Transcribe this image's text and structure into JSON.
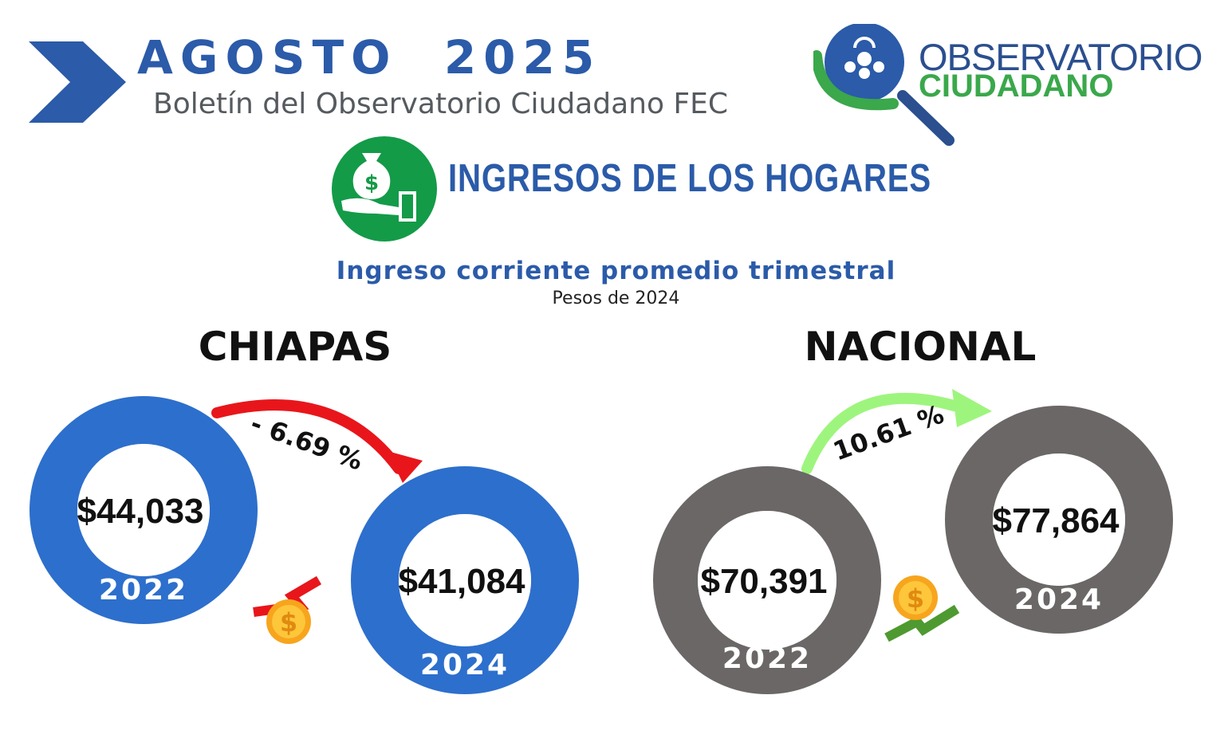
{
  "header": {
    "title": "AGOSTO  2025",
    "subtitle": "Boletín del Observatorio Ciudadano FEC"
  },
  "logo": {
    "line1": "OBSERVATORIO",
    "line2": "CIUDADANO",
    "icon": "magnifier-people-icon"
  },
  "section": {
    "title": "INGRESOS DE LOS HOGARES",
    "icon": "money-bag-hand-icon"
  },
  "colors": {
    "brand_blue": "#2b5ba9",
    "donut_blue": "#2d6fcc",
    "donut_gray": "#6a6766",
    "decrease_red": "#e8161b",
    "increase_green": "#9ef57d",
    "logo_green": "#3aa84b"
  },
  "chart_data": {
    "type": "donut-comparison",
    "title": "Ingreso corriente promedio trimestral",
    "subtitle": "Pesos de 2024",
    "groups": [
      {
        "name": "CHIAPAS",
        "values": [
          {
            "year": "2022",
            "label": "$44,033",
            "value": 44033
          },
          {
            "year": "2024",
            "label": "$41,084",
            "value": 41084
          }
        ],
        "change_label": "- 6.69 %",
        "change": -6.69,
        "trend": "down"
      },
      {
        "name": "NACIONAL",
        "values": [
          {
            "year": "2022",
            "label": "$70,391",
            "value": 70391
          },
          {
            "year": "2024",
            "label": "$77,864",
            "value": 77864
          }
        ],
        "change_label": "10.61 %",
        "change": 10.61,
        "trend": "up"
      }
    ]
  }
}
